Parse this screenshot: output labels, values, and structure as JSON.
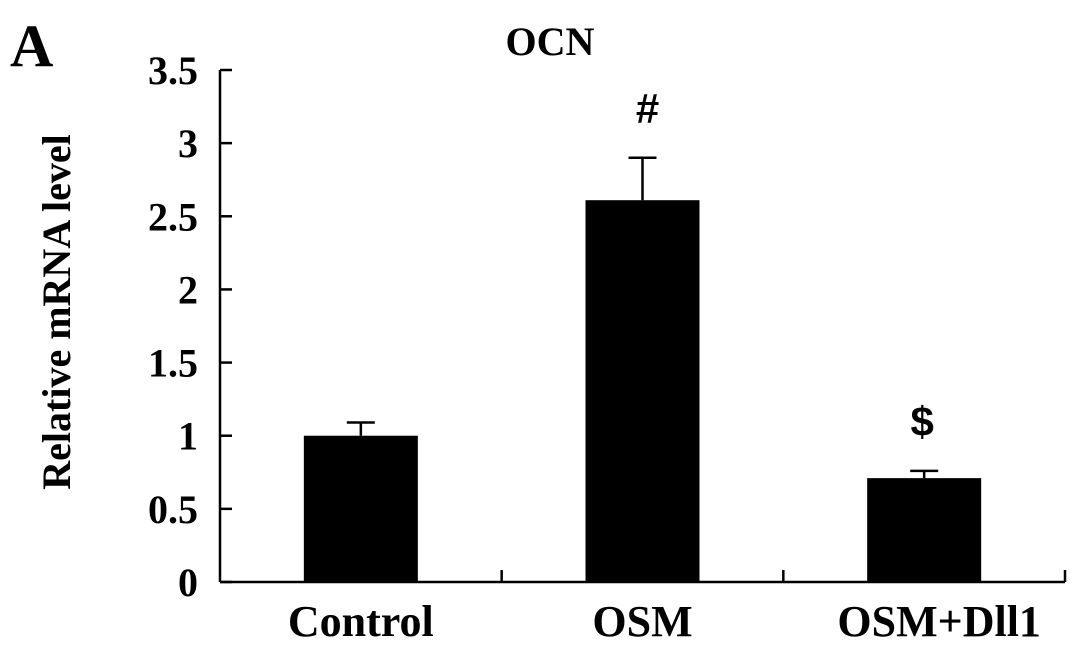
{
  "panel_label": "A",
  "chart_data": {
    "type": "bar",
    "title": "OCN",
    "xlabel": "",
    "ylabel": "Relative mRNA level",
    "categories": [
      "Control",
      "OSM",
      "OSM+Dll1"
    ],
    "values": [
      1.0,
      2.61,
      0.71
    ],
    "errors": [
      0.09,
      0.29,
      0.05
    ],
    "annotations": [
      "",
      "#",
      "$"
    ],
    "ylim": [
      0,
      3.5
    ],
    "yticks": [
      0,
      0.5,
      1,
      1.5,
      2,
      2.5,
      3,
      3.5
    ],
    "ytick_labels": [
      "0",
      "0.5",
      "1",
      "1.5",
      "2",
      "2.5",
      "3",
      "3.5"
    ],
    "bar_color": "#000000",
    "grid": false
  }
}
